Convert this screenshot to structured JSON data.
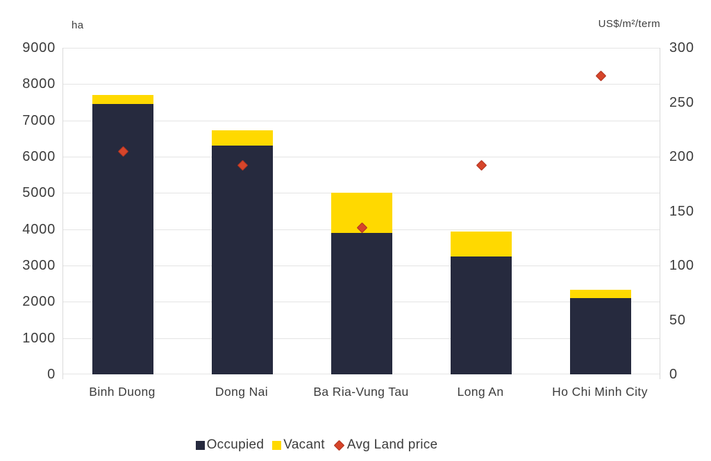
{
  "chart_data": {
    "type": "bar",
    "subtype": "stacked-column-with-scatter-overlay",
    "title": "",
    "categories": [
      "Binh Duong",
      "Dong Nai",
      "Ba Ria-Vung Tau",
      "Long An",
      "Ho Chi Minh City"
    ],
    "series": [
      {
        "name": "Occupied",
        "type": "bar",
        "stack": "supply",
        "axis": "left",
        "color": "#262a3e",
        "values": [
          7460,
          6300,
          3890,
          3240,
          2100
        ]
      },
      {
        "name": "Vacant",
        "type": "bar",
        "stack": "supply",
        "axis": "left",
        "color": "#ffd900",
        "values": [
          240,
          420,
          1110,
          690,
          240
        ]
      },
      {
        "name": "Avg Land price",
        "type": "scatter",
        "marker": "diamond",
        "axis": "right",
        "color": "#d6452a",
        "values": [
          205,
          192,
          135,
          192,
          274
        ]
      }
    ],
    "left_axis": {
      "label": "ha",
      "min": 0,
      "max": 9000,
      "step": 1000,
      "tick_labels": [
        "0",
        "1000",
        "2000",
        "3000",
        "4000",
        "5000",
        "6000",
        "7000",
        "8000",
        "9000"
      ]
    },
    "right_axis": {
      "label": "US$/m²/term",
      "min": 0,
      "max": 300,
      "step": 50,
      "tick_labels": [
        "0",
        "50",
        "100",
        "150",
        "200",
        "250",
        "300"
      ]
    },
    "grid": {
      "horizontal": true,
      "color": "#e4e4e4"
    },
    "legend": {
      "position": "bottom",
      "items": [
        {
          "label": "Occupied",
          "swatch": "square",
          "color": "#262a3e"
        },
        {
          "label": "Vacant",
          "swatch": "square",
          "color": "#ffd900"
        },
        {
          "label": "Avg Land price",
          "swatch": "diamond",
          "color": "#d6452a",
          "border": "#b03421"
        }
      ]
    }
  },
  "colors": {
    "background": "#ffffff",
    "text": "#3c3c3c",
    "grid": "#e4e4e4",
    "axis_border": "#d9d9d9",
    "marker_border": "#b03421"
  }
}
